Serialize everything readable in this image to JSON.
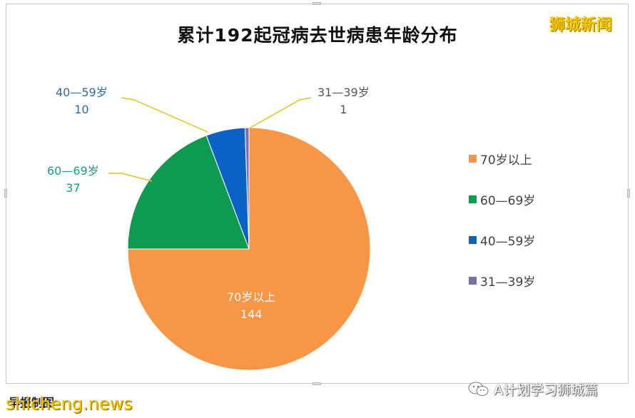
{
  "title": "累计192起冠病去世病患年龄分布",
  "brand": "狮城新闻",
  "source": "早报制图",
  "watermark": "shicheng.news",
  "credit": "A计划学习狮城篇",
  "chart_data": {
    "type": "pie",
    "title": "累计192起冠病去世病患年龄分布",
    "slices": [
      {
        "label": "70岁以上",
        "value": 144,
        "color": "#f79646"
      },
      {
        "label": "60—69岁",
        "value": 37,
        "color": "#0e9a50"
      },
      {
        "label": "40—59岁",
        "value": 10,
        "color": "#0a63c4"
      },
      {
        "label": "31—39岁",
        "value": 1,
        "color": "#7a6fa8"
      }
    ],
    "legend_position": "right",
    "legend": [
      "70岁以上",
      "60—69岁",
      "40—59岁",
      "31—39岁"
    ]
  },
  "labels": {
    "s70": {
      "name": "70岁以上",
      "value": "144"
    },
    "s60": {
      "name": "60—69岁",
      "value": "37"
    },
    "s40": {
      "name": "40—59岁",
      "value": "10"
    },
    "s31": {
      "name": "31—39岁",
      "value": "1"
    }
  }
}
